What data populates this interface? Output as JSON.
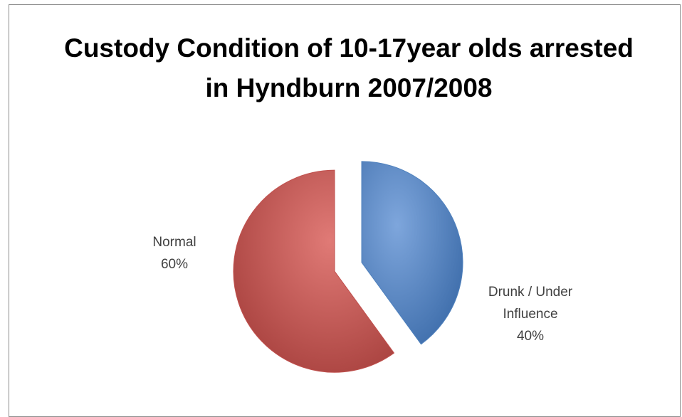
{
  "chart_data": {
    "type": "pie",
    "title": "Custody Condition of 10-17year olds arrested in Hyndburn 2007/2008",
    "categories": [
      "Drunk / Under Influence",
      "Normal"
    ],
    "values": [
      40,
      60
    ],
    "value_labels": [
      "40%",
      "60%"
    ],
    "colors": [
      "#4f81bd",
      "#c0504d"
    ]
  }
}
